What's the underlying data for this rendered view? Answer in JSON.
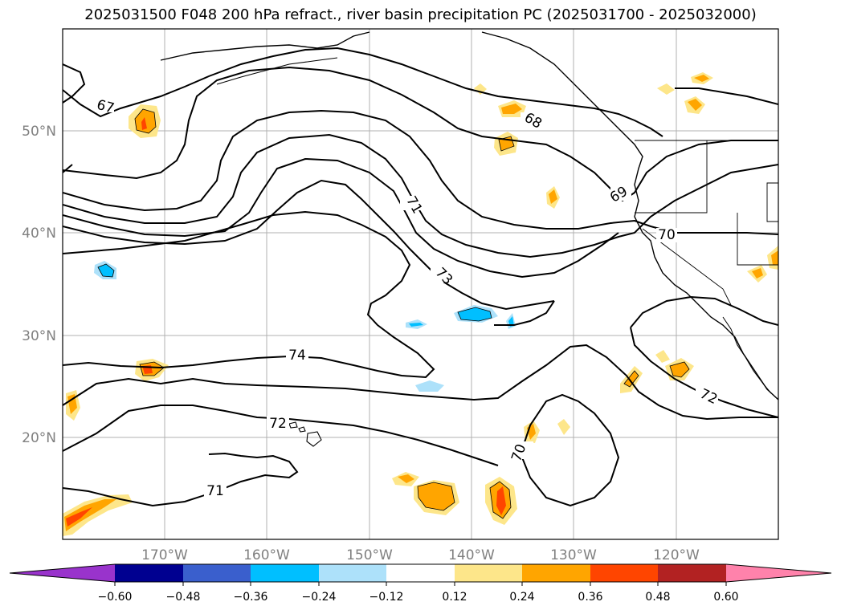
{
  "title": "2025031500 F048 200 hPa refract., river basin precipitation PC (2025031700 - 2025032000)",
  "lat_labels": [
    "50°N",
    "40°N",
    "30°N",
    "20°N"
  ],
  "lon_labels": [
    "170°W",
    "160°W",
    "150°W",
    "140°W",
    "130°W",
    "120°W"
  ],
  "contour_labels": [
    "67",
    "68",
    "69",
    "70",
    "71",
    "73",
    "74",
    "72",
    "72",
    "70",
    "71"
  ],
  "colorbar": {
    "colors": [
      "#9933cc",
      "#000090",
      "#3a5fcd",
      "#00bfff",
      "#ade1fa",
      "#ffffff",
      "#fde68a",
      "#ffa500",
      "#ff4500",
      "#b22222",
      "#ff82ab"
    ],
    "ticks": [
      "−0.60",
      "−0.48",
      "−0.36",
      "−0.24",
      "−0.12",
      "0.12",
      "0.24",
      "0.36",
      "0.48",
      "0.60"
    ]
  }
}
